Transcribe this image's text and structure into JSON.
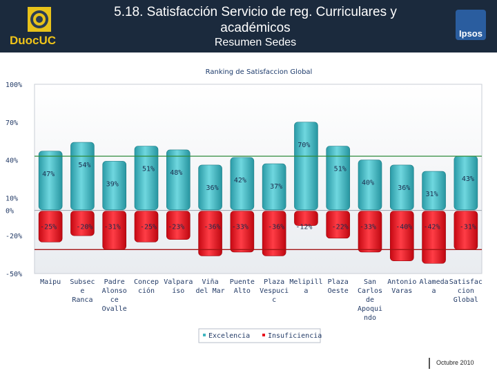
{
  "header": {
    "title": "5.18. Satisfacción Servicio de reg. Curriculares y académicos",
    "subtitle": "Resumen Sedes",
    "duoc_logo_text": "DuocUC",
    "ipsos_logo_text": "Ipsos"
  },
  "footer": {
    "date": "Octubre 2010"
  },
  "colors": {
    "header_bg": "#1b2a3d",
    "excelencia": "#3fb6c0",
    "insuficiencia": "#e8101c",
    "ref_green": "#2e8b3a",
    "ref_red": "#a31515"
  },
  "chart_data": {
    "type": "bar",
    "title": "Ranking de Satisfaccion Global",
    "categories": [
      [
        "Maipu"
      ],
      [
        "Subsec",
        "e",
        "Ranca"
      ],
      [
        "Padre",
        "Alonso",
        "ce",
        "Ovalle"
      ],
      [
        "Concep",
        "ción"
      ],
      [
        "Valpara",
        "íso"
      ],
      [
        "Viña",
        "del Mar"
      ],
      [
        "Puente",
        "Alto"
      ],
      [
        "Plaza",
        "Vespuci",
        "c"
      ],
      [
        "Melipill",
        "a"
      ],
      [
        "Plaza",
        "Oeste"
      ],
      [
        "San",
        "Carlos",
        "de",
        "Apoqui",
        "ndo"
      ],
      [
        "Antonio",
        "Varas"
      ],
      [
        "Alameda",
        "a"
      ],
      [
        "Satisfac",
        "cion",
        "Global"
      ]
    ],
    "series": [
      {
        "name": "Excelencia",
        "values": [
          47,
          54,
          39,
          51,
          48,
          36,
          42,
          37,
          70,
          51,
          40,
          36,
          31,
          43
        ],
        "labels": [
          "47%",
          "54%",
          "39%",
          "51%",
          "48%",
          "36%",
          "42%",
          "37%",
          "70%",
          "51%",
          "40%",
          "36%",
          "31%",
          "43%"
        ]
      },
      {
        "name": "Insuficiencia",
        "values": [
          -25,
          -20,
          -31,
          -25,
          -23,
          -36,
          -33,
          -36,
          -12,
          -22,
          -33,
          -40,
          -42,
          -31
        ],
        "labels": [
          "-25%",
          "-20%",
          "-31%",
          "-25%",
          "-23%",
          "-36%",
          "-33%",
          "-36%",
          "-12%",
          "-22%",
          "-33%",
          "-40%",
          "-42%",
          "-31%"
        ]
      }
    ],
    "ylim": [
      -50,
      100
    ],
    "yticks": [
      {
        "value": 100,
        "label": "100%"
      },
      {
        "value": 70,
        "label": "70%"
      },
      {
        "value": 40,
        "label": "40%"
      },
      {
        "value": 10,
        "label": "10%"
      },
      {
        "value": 0,
        "label": "0%"
      },
      {
        "value": -20,
        "label": "-20%"
      },
      {
        "value": -50,
        "label": "-50%"
      }
    ],
    "reference_lines": [
      {
        "value": 43,
        "color": "green"
      },
      {
        "value": -31,
        "color": "red"
      }
    ],
    "legend": [
      {
        "name": "Excelencia"
      },
      {
        "name": "Insuficiencia"
      }
    ],
    "legend_position": "bottom"
  }
}
